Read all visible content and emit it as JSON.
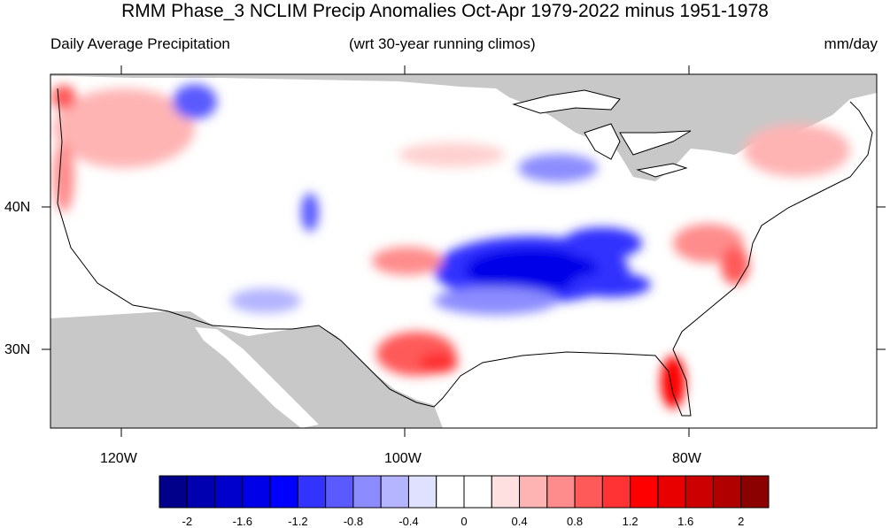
{
  "title": "RMM Phase_3 NCLIM Precip Anomalies Oct-Apr 1979-2022 minus 1951-1978",
  "subtitle_left": "Daily Average Precipitation",
  "subtitle_center": "(wrt 30-year running climos)",
  "subtitle_right": "mm/day",
  "axes": {
    "lat_labels": [
      "40N",
      "30N"
    ],
    "lon_labels": [
      "120W",
      "100W",
      "80W"
    ]
  },
  "colorbar": {
    "colors": [
      "#00008b",
      "#0000b0",
      "#0000cd",
      "#0000e8",
      "#0000ff",
      "#3333ff",
      "#5a5aff",
      "#8c8cff",
      "#b4b4ff",
      "#e0e0ff",
      "#ffffff",
      "#ffffff",
      "#ffe0e0",
      "#ffb4b4",
      "#ff8c8c",
      "#ff5a5a",
      "#ff3333",
      "#ff0000",
      "#e80000",
      "#cd0000",
      "#b00000",
      "#8b0000"
    ],
    "labels": [
      "-2",
      "-1.6",
      "-1.2",
      "-0.8",
      "-0.4",
      "0",
      "0.4",
      "0.8",
      "1.2",
      "1.6",
      "2"
    ],
    "all_levels": [
      "-2",
      "-1.8",
      "-1.6",
      "-1.4",
      "-1.2",
      "-1",
      "-0.8",
      "-0.6",
      "-0.4",
      "-0.2",
      "0",
      "0.2",
      "0.4",
      "0.6",
      "0.8",
      "1",
      "1.2",
      "1.4",
      "1.6",
      "1.8",
      "2"
    ]
  },
  "colors": {
    "land_mask": "#c8c8c8",
    "border": "#000000",
    "strong_negative": "#1e1eff",
    "positive": "#ff6464"
  }
}
